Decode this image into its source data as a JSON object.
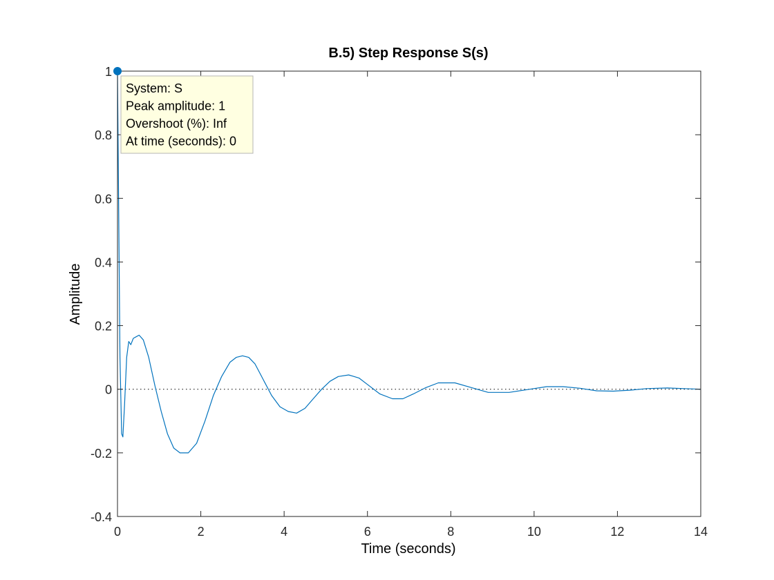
{
  "chart_data": {
    "type": "line",
    "title": "B.5) Step Response S(s)",
    "xlabel": "Time (seconds)",
    "ylabel": "Amplitude",
    "xlim": [
      0,
      14
    ],
    "ylim": [
      -0.4,
      1
    ],
    "xticks": [
      0,
      2,
      4,
      6,
      8,
      10,
      12,
      14
    ],
    "yticks": [
      -0.4,
      -0.2,
      0,
      0.2,
      0.4,
      0.6,
      0.8,
      1
    ],
    "xtick_labels": [
      "0",
      "2",
      "4",
      "6",
      "8",
      "10",
      "12",
      "14"
    ],
    "ytick_labels": [
      "-0.4",
      "-0.2",
      "0",
      "0.2",
      "0.4",
      "0.6",
      "0.8",
      "1"
    ],
    "grid": false,
    "reference_line": {
      "y": 0,
      "style": "dotted"
    },
    "series": [
      {
        "color": "#0072bd",
        "x": [
          0,
          0.03,
          0.06,
          0.1,
          0.13,
          0.17,
          0.22,
          0.27,
          0.32,
          0.38,
          0.45,
          0.52,
          0.62,
          0.75,
          0.9,
          1.05,
          1.2,
          1.35,
          1.5,
          1.7,
          1.9,
          2.1,
          2.3,
          2.5,
          2.7,
          2.85,
          3.0,
          3.15,
          3.3,
          3.5,
          3.7,
          3.9,
          4.1,
          4.3,
          4.5,
          4.7,
          4.9,
          5.1,
          5.3,
          5.55,
          5.8,
          6.0,
          6.3,
          6.6,
          6.85,
          7.1,
          7.4,
          7.7,
          8.1,
          8.5,
          8.9,
          9.4,
          9.9,
          10.3,
          10.7,
          11.1,
          11.5,
          11.9,
          12.3,
          12.7,
          13.2,
          13.6,
          14.0
        ],
        "y": [
          1.0,
          0.55,
          0.1,
          -0.14,
          -0.15,
          -0.05,
          0.1,
          0.15,
          0.14,
          0.16,
          0.165,
          0.17,
          0.155,
          0.1,
          0.01,
          -0.07,
          -0.14,
          -0.185,
          -0.2,
          -0.2,
          -0.17,
          -0.1,
          -0.02,
          0.04,
          0.085,
          0.1,
          0.105,
          0.1,
          0.08,
          0.03,
          -0.02,
          -0.055,
          -0.07,
          -0.075,
          -0.06,
          -0.03,
          0.0,
          0.025,
          0.04,
          0.045,
          0.035,
          0.015,
          -0.015,
          -0.03,
          -0.03,
          -0.015,
          0.005,
          0.02,
          0.02,
          0.005,
          -0.01,
          -0.01,
          0.0,
          0.008,
          0.008,
          0.003,
          -0.005,
          -0.006,
          -0.003,
          0.002,
          0.004,
          0.002,
          0.0
        ]
      }
    ],
    "data_tip": {
      "x": 0,
      "y": 1,
      "lines": [
        "System: S",
        "Peak amplitude: 1",
        "Overshoot (%): Inf",
        "At time (seconds): 0"
      ]
    }
  }
}
